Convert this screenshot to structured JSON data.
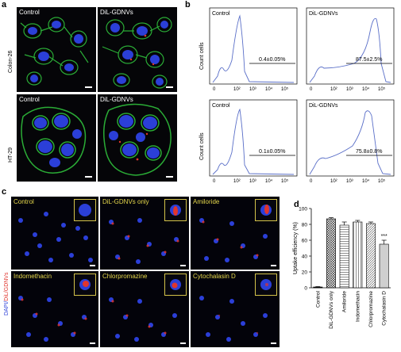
{
  "panels": {
    "a": {
      "letter": "a",
      "col_labels": [
        "Control",
        "DiL-GDNVs"
      ],
      "row_labels": [
        "Colon-26",
        "HT-29"
      ]
    },
    "b": {
      "letter": "b",
      "ylabel": "Count cells",
      "xticks": [
        "0",
        "10²",
        "10³",
        "10⁴",
        "10⁵"
      ],
      "plots": [
        {
          "label": "Control",
          "value": "0.4±0.05%"
        },
        {
          "label": "DiL-GDNVs",
          "value": "87.5±2.5%"
        },
        {
          "label": "Control",
          "value": "0.1±0.05%"
        },
        {
          "label": "DiL-GDNVs",
          "value": "75.8±0.8%"
        }
      ]
    },
    "c": {
      "letter": "c",
      "side_label_dapi": "DAPI/",
      "side_label_dil": "DiL/GDNVs",
      "tiles": [
        "Control",
        "DiL-GDNVs only",
        "Amiloride",
        "Indomethacin",
        "Chlorpromazine",
        "Cytochalasin D"
      ]
    },
    "d": {
      "letter": "d",
      "ylabel": "Uptake efficiency (%)",
      "significance": "***"
    }
  },
  "chart_data": {
    "type": "bar",
    "title": "",
    "xlabel": "",
    "ylabel": "Uptake efficiency (%)",
    "ylim": [
      0,
      100
    ],
    "yticks": [
      "0",
      "20",
      "40",
      "60",
      "80",
      "100"
    ],
    "categories": [
      "Control",
      "DiL-GDNVs only",
      "Amiloride",
      "Indomethacin",
      "Chlorpromazine",
      "Cytochalasin D"
    ],
    "values": [
      1,
      87,
      79,
      83,
      81,
      55
    ],
    "errors": [
      0.5,
      1.5,
      4,
      2,
      2,
      5
    ],
    "patterns": [
      "solid",
      "crosshatch",
      "horizontal",
      "vertical",
      "diagonal",
      "light"
    ],
    "significance": [
      {
        "category": "Cytochalasin D",
        "label": "***"
      }
    ]
  },
  "colors": {
    "histogram_line": "#5a6fc8",
    "nucleus": "#2b3fd8",
    "actin": "#2fbf3b",
    "dil_red": "#e0352d",
    "panel_c_label": "#e6d84c"
  }
}
